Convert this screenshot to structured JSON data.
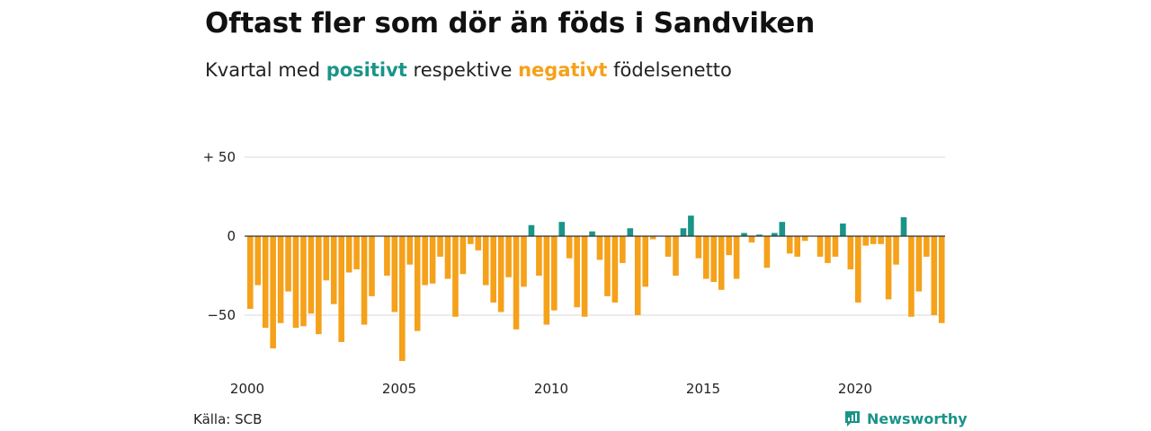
{
  "header": {
    "title": "Oftast fler som dör än föds i Sandviken",
    "subtitle_before": "Kvartal med",
    "subtitle_positive": "positivt",
    "subtitle_middle": "respektive",
    "subtitle_negative": "negativt",
    "subtitle_after": "födelsenetto"
  },
  "footer": {
    "source": "Källa: SCB",
    "brand": "Newsworthy",
    "brand_icon": "newsworthy-logo-icon"
  },
  "colors": {
    "positive": "#1a9488",
    "negative": "#f5a11a",
    "grid": "#d9d9d9",
    "zero_line": "#333333"
  },
  "chart_data": {
    "type": "bar",
    "title": "Oftast fler som dör än föds i Sandviken",
    "subtitle": "Kvartal med positivt respektive negativt födelsenetto",
    "x_start": "2000-Q1",
    "x_ticks": [
      "2000",
      "2005",
      "2010",
      "2015",
      "2020"
    ],
    "y_ticks": [
      "+ 50",
      "0",
      "−50"
    ],
    "y_tick_values": [
      50,
      0,
      -50
    ],
    "ylim": [
      -80,
      50
    ],
    "grid": true,
    "values": [
      -46,
      -31,
      -58,
      -71,
      -55,
      -35,
      -58,
      -57,
      -49,
      -62,
      -28,
      -43,
      -67,
      -23,
      -21,
      -56,
      -38,
      0,
      -25,
      -48,
      -79,
      -18,
      -60,
      -31,
      -30,
      -13,
      -27,
      -51,
      -24,
      -5,
      -9,
      -31,
      -42,
      -48,
      -26,
      -59,
      -32,
      7,
      -25,
      -56,
      -47,
      9,
      -14,
      -45,
      -51,
      3,
      -15,
      -38,
      -42,
      -17,
      5,
      -50,
      -32,
      -2,
      0,
      -13,
      -25,
      5,
      13,
      -14,
      -27,
      -29,
      -34,
      -12,
      -27,
      2,
      -4,
      1,
      -20,
      2,
      9,
      -11,
      -13,
      -3,
      0,
      -13,
      -17,
      -13,
      8,
      -21,
      -42,
      -6,
      -5,
      -5,
      -40,
      -18,
      12,
      -51,
      -35,
      -13,
      -50,
      -55
    ]
  }
}
